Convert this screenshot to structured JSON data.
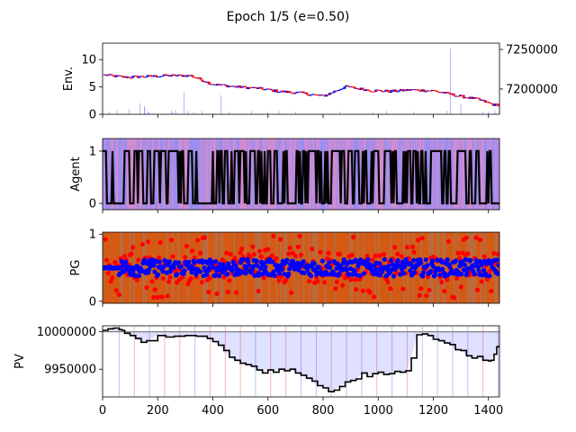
{
  "chart_data": {
    "title": "Epoch 1/5 (e=0.50)",
    "type": "line",
    "shared_x": {
      "ticks": [
        0,
        200,
        400,
        600,
        800,
        1000,
        1200,
        1400
      ],
      "xlim": [
        0,
        1440
      ]
    },
    "panels": [
      {
        "ylabel": "Env.",
        "left_ylim": [
          0,
          13
        ],
        "left_yticks": [
          0,
          5,
          10
        ],
        "right_ylim": [
          7168000,
          7258000
        ],
        "right_yticks": [
          7200000,
          7250000
        ],
        "series": [
          {
            "type": "candlestick",
            "values_x": [
              0,
              80,
              160,
              240,
              320,
              400,
              480,
              560,
              640,
              720,
              800,
              880,
              960,
              1040,
              1120,
              1200,
              1280,
              1360,
              1420
            ],
            "values": [
              7218000,
              7215000,
              7216000,
              7217000,
              7217000,
              7206000,
              7203000,
              7201000,
              7197000,
              7195000,
              7191000,
              7203000,
              7199000,
              7197000,
              7199000,
              7198000,
              7192000,
              7187000,
              7180000
            ]
          },
          {
            "type": "volume_bar",
            "x": [
              24,
              52,
              97,
              136,
              152,
              153,
              164,
              168,
              250,
              255,
              265,
              295,
              310,
              330,
              360,
              430,
              460,
              540,
              600,
              640,
              700,
              860,
              980,
              1030,
              1130,
              1250,
              1262,
              1300,
              1380,
              1400,
              1424
            ],
            "values": [
              0.5,
              0.8,
              1.0,
              2.0,
              1.5,
              1.2,
              0.4,
              0.4,
              0.7,
              0.4,
              0.7,
              4.0,
              0.6,
              0.4,
              0.6,
              3.5,
              0.5,
              0.6,
              0.5,
              0.6,
              0.5,
              0.5,
              0.4,
              0.6,
              0.5,
              0.7,
              12.0,
              1.8,
              0.4,
              0.5,
              0.6
            ]
          }
        ]
      },
      {
        "ylabel": "Agent",
        "ylim": [
          -0.12,
          1.24
        ],
        "yticks": [
          0,
          1
        ],
        "series": [
          {
            "type": "line",
            "color": "#000000",
            "x_step": 4,
            "values_desc": "binary action 0/1 per step"
          }
        ]
      },
      {
        "ylabel": "PG",
        "ylim": [
          -0.03,
          1.03
        ],
        "yticks": [
          0,
          1
        ],
        "series": [
          {
            "type": "scatter",
            "color": "#ff0000",
            "range": [
              0,
              1
            ]
          },
          {
            "type": "scatter",
            "color": "#0000ff",
            "range": [
              0.4,
              0.6
            ]
          }
        ]
      },
      {
        "ylabel": "PV",
        "ylim": [
          9913000,
          10008000
        ],
        "yticks": [
          9950000,
          10000000
        ],
        "series": [
          {
            "type": "line",
            "color": "#000000",
            "x": [
              0,
              20,
              40,
              60,
              70,
              80,
              100,
              120,
              140,
              160,
              200,
              230,
              260,
              300,
              340,
              380,
              400,
              420,
              440,
              460,
              480,
              500,
              520,
              540,
              560,
              580,
              600,
              620,
              640,
              660,
              680,
              700,
              720,
              740,
              760,
              780,
              800,
              820,
              840,
              860,
              880,
              900,
              920,
              940,
              960,
              980,
              1000,
              1020,
              1040,
              1060,
              1080,
              1100,
              1120,
              1140,
              1160,
              1180,
              1200,
              1220,
              1240,
              1260,
              1280,
              1300,
              1320,
              1340,
              1360,
              1380,
              1400,
              1410,
              1420,
              1430,
              1440
            ],
            "values": [
              10002000,
              10004000,
              10005000,
              10003000,
              10002000,
              9998000,
              9995000,
              9991000,
              9986000,
              9988000,
              9995000,
              9993000,
              9994000,
              9995000,
              9994000,
              9991000,
              9987000,
              9982000,
              9975000,
              9966000,
              9962000,
              9958000,
              9956000,
              9954000,
              9949000,
              9945000,
              9949000,
              9946000,
              9950000,
              9948000,
              9950000,
              9945000,
              9942000,
              9938000,
              9934000,
              9928000,
              9925000,
              9920000,
              9922000,
              9927000,
              9933000,
              9935000,
              9937000,
              9945000,
              9940000,
              9944000,
              9946000,
              9943000,
              9944000,
              9947000,
              9946000,
              9948000,
              9965000,
              9996000,
              9997000,
              9995000,
              9990000,
              9988000,
              9985000,
              9983000,
              9976000,
              9975000,
              9968000,
              9965000,
              9967000,
              9962000,
              9961000,
              9962000,
              9970000,
              9980000,
              9982000
            ]
          },
          {
            "type": "reference_line",
            "color": "#808080",
            "value": 10000000
          }
        ]
      }
    ]
  }
}
